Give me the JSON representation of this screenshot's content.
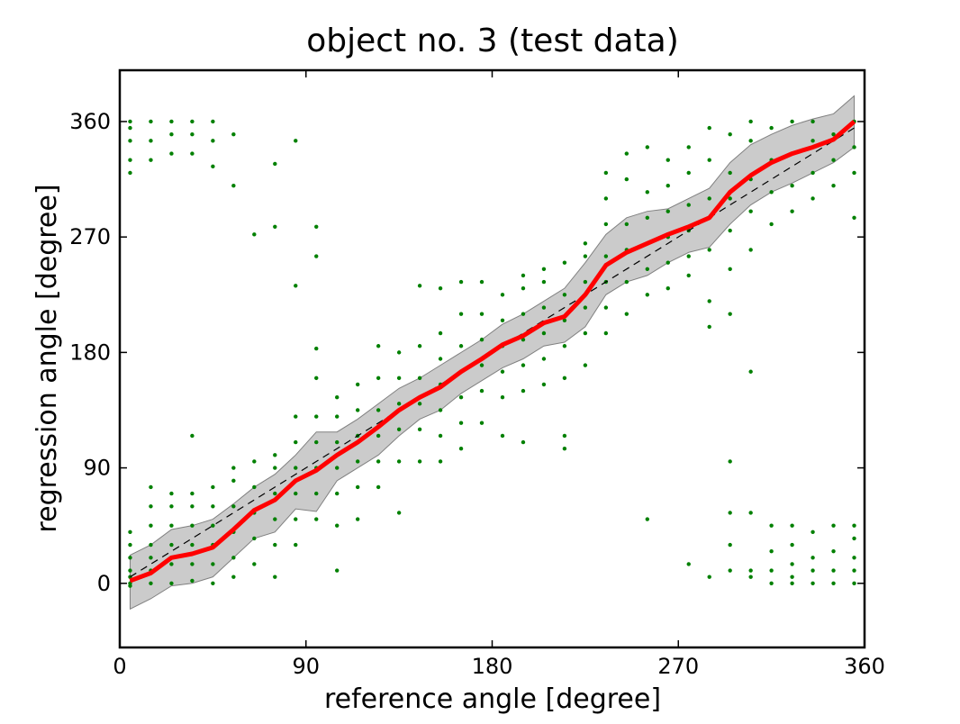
{
  "chart_data": {
    "type": "scatter",
    "title": "object no. 3 (test data)",
    "x_label": "reference angle [degree]",
    "y_label": "regression angle [degree]",
    "xlim": [
      0,
      360
    ],
    "ylim": [
      -50,
      400
    ],
    "xticks": [
      0,
      90,
      180,
      270,
      360
    ],
    "yticks": [
      0,
      90,
      180,
      270,
      360
    ],
    "x": [
      5,
      15,
      25,
      35,
      45,
      55,
      65,
      75,
      85,
      95,
      105,
      115,
      125,
      135,
      145,
      155,
      165,
      175,
      185,
      195,
      205,
      215,
      225,
      235,
      245,
      255,
      265,
      275,
      285,
      295,
      305,
      315,
      325,
      335,
      345,
      355
    ],
    "points": {
      "color": "#008000",
      "values": [
        [
          -2,
          0,
          5,
          10,
          20,
          30,
          40,
          320,
          330,
          345,
          355,
          360
        ],
        [
          0,
          10,
          20,
          30,
          45,
          60,
          75,
          330,
          345,
          360
        ],
        [
          0,
          15,
          30,
          45,
          60,
          70,
          335,
          350,
          360
        ],
        [
          2,
          15,
          30,
          45,
          60,
          70,
          115,
          335,
          350,
          360
        ],
        [
          0,
          15,
          30,
          45,
          60,
          75,
          325,
          345,
          360
        ],
        [
          5,
          20,
          40,
          60,
          80,
          90,
          310,
          350
        ],
        [
          15,
          35,
          55,
          75,
          95,
          272
        ],
        [
          5,
          30,
          50,
          70,
          90,
          100,
          327,
          278
        ],
        [
          30,
          50,
          70,
          90,
          110,
          130,
          232,
          345
        ],
        [
          50,
          70,
          90,
          110,
          130,
          255,
          278,
          183,
          160
        ],
        [
          10,
          45,
          70,
          90,
          110,
          130,
          145
        ],
        [
          50,
          75,
          95,
          115,
          135,
          155
        ],
        [
          75,
          95,
          115,
          135,
          160,
          185
        ],
        [
          55,
          95,
          120,
          140,
          160,
          180
        ],
        [
          95,
          120,
          140,
          160,
          185,
          232
        ],
        [
          95,
          115,
          135,
          155,
          175,
          195,
          230
        ],
        [
          105,
          125,
          145,
          165,
          185,
          210,
          235
        ],
        [
          125,
          150,
          170,
          190,
          210,
          235
        ],
        [
          115,
          145,
          165,
          185,
          205,
          225
        ],
        [
          110,
          150,
          170,
          190,
          210,
          230,
          240
        ],
        [
          155,
          175,
          195,
          215,
          235,
          245
        ],
        [
          105,
          115,
          160,
          185,
          205,
          225,
          250
        ],
        [
          170,
          195,
          215,
          235,
          255,
          265
        ],
        [
          195,
          215,
          235,
          255,
          280,
          300,
          320
        ],
        [
          210,
          235,
          260,
          280,
          315,
          335
        ],
        [
          50,
          225,
          245,
          265,
          285,
          305,
          340
        ],
        [
          230,
          250,
          270,
          290,
          310,
          330
        ],
        [
          15,
          240,
          255,
          275,
          295,
          320,
          340
        ],
        [
          5,
          200,
          220,
          260,
          285,
          300,
          330,
          355
        ],
        [
          10,
          30,
          55,
          95,
          210,
          245,
          275,
          300,
          320,
          350
        ],
        [
          5,
          10,
          55,
          165,
          260,
          290,
          315,
          345,
          360
        ],
        [
          0,
          10,
          25,
          45,
          280,
          305,
          330,
          355
        ],
        [
          0,
          5,
          15,
          30,
          45,
          290,
          310,
          335,
          360
        ],
        [
          0,
          10,
          20,
          40,
          300,
          320,
          345,
          360
        ],
        [
          0,
          10,
          25,
          45,
          310,
          330,
          350
        ],
        [
          0,
          10,
          20,
          35,
          45,
          285,
          320,
          340,
          360
        ]
      ]
    },
    "band": {
      "color": "#bebebe",
      "upper": [
        22,
        30,
        42,
        45,
        50,
        62,
        75,
        85,
        100,
        118,
        118,
        128,
        140,
        152,
        160,
        170,
        180,
        190,
        202,
        210,
        220,
        230,
        250,
        272,
        285,
        290,
        292,
        300,
        308,
        328,
        342,
        350,
        357,
        362,
        366,
        380
      ],
      "lower": [
        -20,
        -12,
        -2,
        0,
        5,
        20,
        35,
        40,
        58,
        56,
        80,
        90,
        100,
        115,
        128,
        135,
        148,
        158,
        168,
        175,
        185,
        188,
        200,
        225,
        235,
        240,
        250,
        258,
        262,
        280,
        295,
        305,
        312,
        320,
        328,
        340
      ]
    },
    "mean": {
      "color": "#ff0000",
      "values": [
        2,
        8,
        20,
        23,
        28,
        42,
        57,
        65,
        80,
        88,
        100,
        110,
        122,
        135,
        145,
        153,
        165,
        175,
        186,
        193,
        203,
        208,
        225,
        248,
        258,
        265,
        272,
        278,
        285,
        305,
        318,
        328,
        335,
        340,
        346,
        360
      ]
    },
    "reference": {
      "color": "#000000",
      "x": [
        5,
        355
      ],
      "y": [
        5,
        355
      ]
    }
  }
}
